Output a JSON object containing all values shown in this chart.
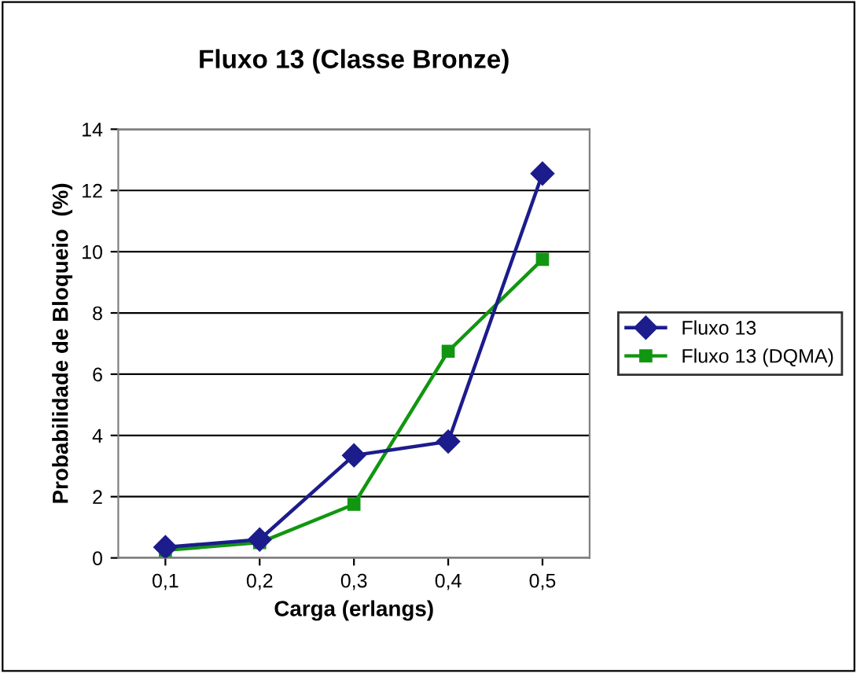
{
  "chart_data": {
    "type": "line",
    "title": "Fluxo 13 (Classe Bronze)",
    "xlabel": "Carga (erlangs)",
    "ylabel": "Probabilidade de Bloqueio  (%)",
    "categories": [
      "0,1",
      "0,2",
      "0,3",
      "0,4",
      "0,5"
    ],
    "series": [
      {
        "name": "Fluxo 13",
        "color": "#1c1c8c",
        "marker": "diamond",
        "values": [
          0.35,
          0.6,
          3.35,
          3.8,
          12.55
        ]
      },
      {
        "name": "Fluxo 13 (DQMA)",
        "color": "#119611",
        "marker": "square",
        "values": [
          0.25,
          0.5,
          1.75,
          6.75,
          9.75
        ]
      }
    ],
    "ylim": [
      0,
      14
    ],
    "yticks": [
      0,
      2,
      4,
      6,
      8,
      10,
      12,
      14
    ],
    "grid": "y",
    "legend": "right",
    "line_style": "solid"
  }
}
